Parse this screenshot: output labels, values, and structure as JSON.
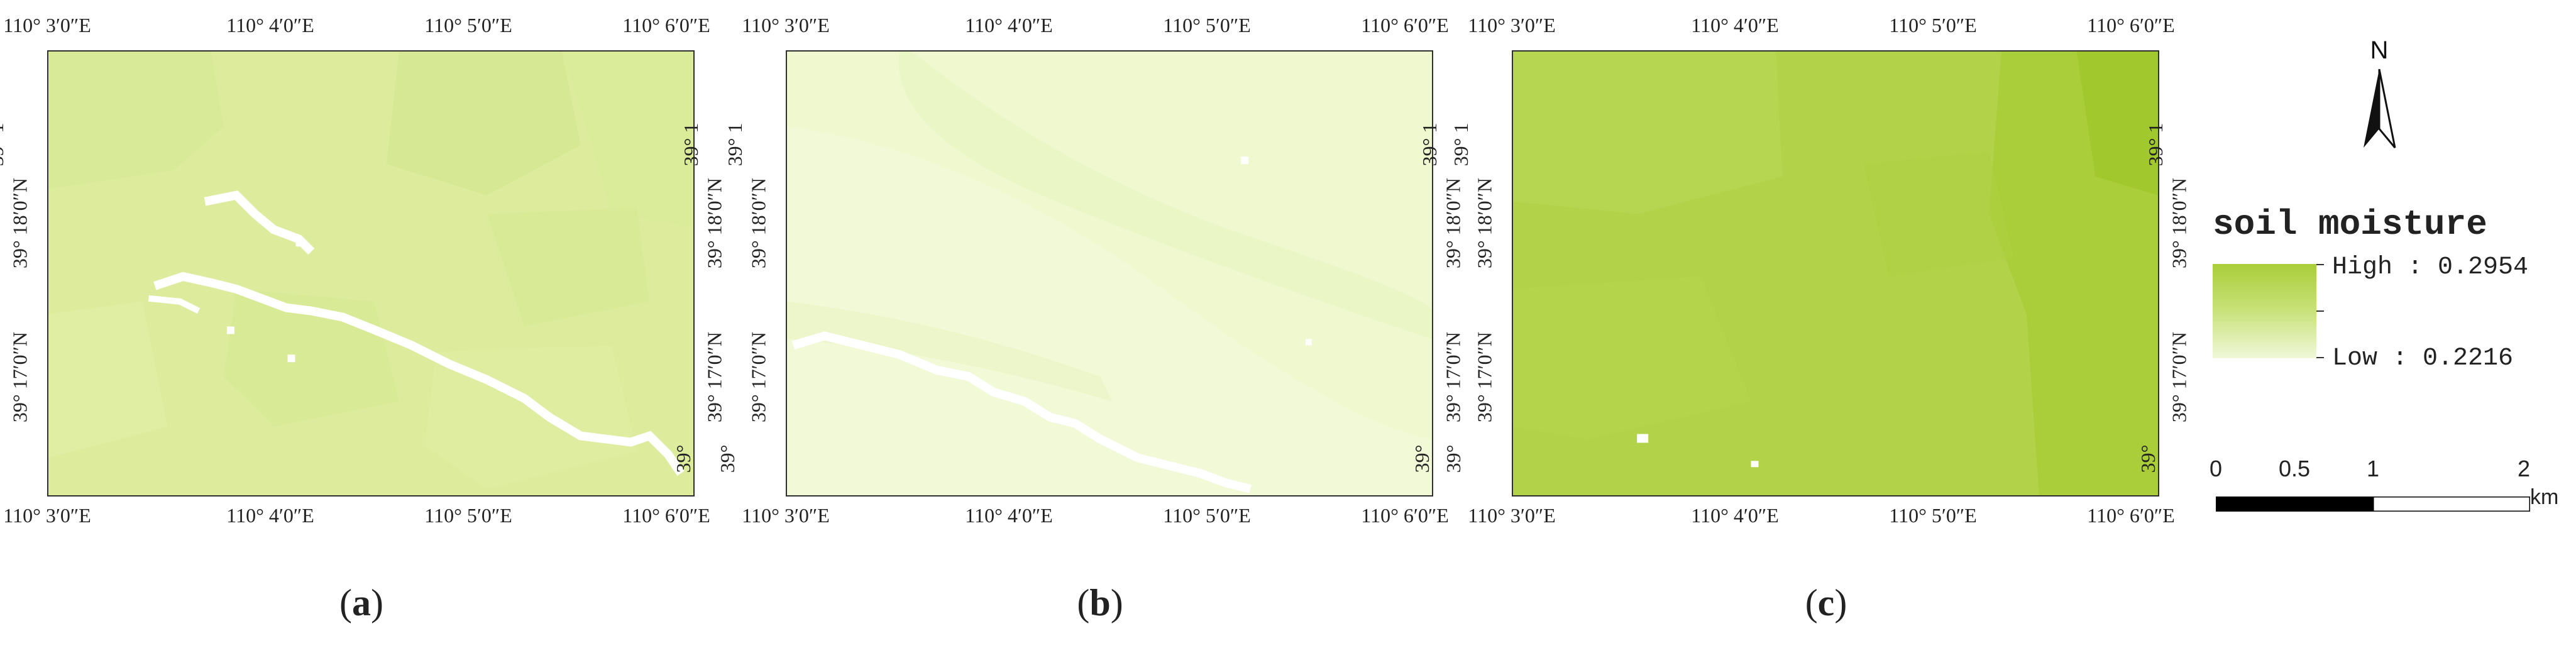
{
  "panels": [
    {
      "id": "a",
      "caption_letter": "a",
      "x_ticks": [
        "110° 3′0″E",
        "110° 4′0″E",
        "110° 5′0″E",
        "110° 6′0″E"
      ],
      "y_ticks": [
        "39° 18′0″N",
        "39° 17′0″N"
      ],
      "first_y_tick_cut": "39° 1",
      "last_y_tick_cut": "39°",
      "fill_color": "#dcec9c",
      "description_level": "medium"
    },
    {
      "id": "b",
      "caption_letter": "b",
      "x_ticks": [
        "110° 3′0″E",
        "110° 4′0″E",
        "110° 5′0″E",
        "110° 6′0″E"
      ],
      "y_ticks": [
        "39° 18′0″N",
        "39° 17′0″N"
      ],
      "first_y_tick_cut": "39° 1",
      "last_y_tick_cut": "39°",
      "fill_color": "#eff8cf",
      "description_level": "low"
    },
    {
      "id": "c",
      "caption_letter": "c",
      "x_ticks": [
        "110° 3′0″E",
        "110° 4′0″E",
        "110° 5′0″E",
        "110° 6′0″E"
      ],
      "y_ticks": [
        "39° 18′0″N",
        "39° 17′0″N"
      ],
      "first_y_tick_cut": "39° 1",
      "last_y_tick_cut": "39°",
      "fill_color": "#b2d349",
      "description_level": "high"
    }
  ],
  "legend": {
    "north_label": "N",
    "title": "soil moisture",
    "high_label": "High : 0.2954",
    "low_label": "Low : 0.2216",
    "high_value": 0.2954,
    "low_value": 0.2216,
    "ramp_colors": [
      "#a9cd39",
      "#c9e27a",
      "#f0f8d9"
    ],
    "scale": {
      "labels": [
        "0",
        "0.5",
        "1",
        "2"
      ],
      "unit": "km"
    }
  }
}
